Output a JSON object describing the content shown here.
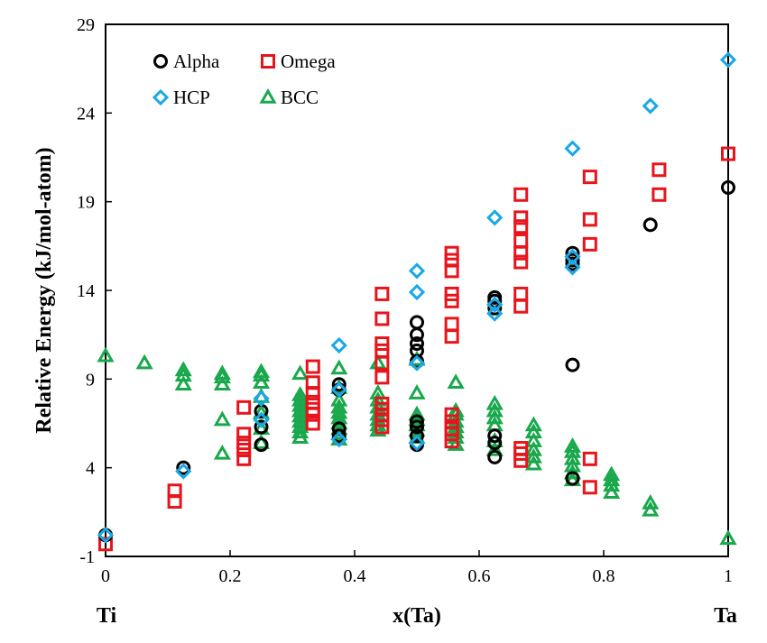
{
  "chart_data": {
    "type": "scatter",
    "title": "",
    "xlabel": "x(Ta)",
    "ylabel": "Relative Energy (kJ/mol-atom)",
    "x_end_labels": {
      "left": "Ti",
      "right": "Ta"
    },
    "xlim": [
      0,
      1
    ],
    "ylim": [
      -1,
      29
    ],
    "xticks": [
      0,
      0.2,
      0.4,
      0.6,
      0.8,
      1
    ],
    "xtick_labels": [
      "0",
      "0.2",
      "0.4",
      "0.6",
      "0.8",
      "1"
    ],
    "yticks": [
      -1,
      4,
      9,
      14,
      19,
      24,
      29
    ],
    "ytick_labels": [
      "-1",
      "4",
      "9",
      "14",
      "19",
      "24",
      "29"
    ],
    "grid": false,
    "legend_position": "top-left",
    "series": [
      {
        "name": "Alpha",
        "marker": "circle",
        "color": "#000000",
        "points": [
          [
            0.0,
            0.2
          ],
          [
            0.125,
            4.0
          ],
          [
            0.25,
            5.3
          ],
          [
            0.25,
            6.3
          ],
          [
            0.25,
            7.2
          ],
          [
            0.375,
            5.8
          ],
          [
            0.375,
            6.2
          ],
          [
            0.375,
            8.4
          ],
          [
            0.375,
            8.7
          ],
          [
            0.5,
            5.3
          ],
          [
            0.5,
            5.8
          ],
          [
            0.5,
            6.3
          ],
          [
            0.5,
            6.6
          ],
          [
            0.5,
            10.0
          ],
          [
            0.5,
            10.6
          ],
          [
            0.5,
            11.0
          ],
          [
            0.5,
            11.5
          ],
          [
            0.5,
            12.2
          ],
          [
            0.625,
            4.6
          ],
          [
            0.625,
            5.4
          ],
          [
            0.625,
            5.8
          ],
          [
            0.625,
            13.0
          ],
          [
            0.625,
            13.4
          ],
          [
            0.625,
            13.6
          ],
          [
            0.75,
            3.4
          ],
          [
            0.75,
            9.8
          ],
          [
            0.75,
            15.5
          ],
          [
            0.75,
            15.7
          ],
          [
            0.75,
            16.1
          ],
          [
            0.875,
            17.7
          ],
          [
            1.0,
            19.8
          ]
        ]
      },
      {
        "name": "Omega",
        "marker": "square",
        "color": "#e8141c",
        "points": [
          [
            0.0,
            -0.3
          ],
          [
            0.111,
            2.1
          ],
          [
            0.111,
            2.7
          ],
          [
            0.222,
            4.5
          ],
          [
            0.222,
            5.0
          ],
          [
            0.222,
            5.4
          ],
          [
            0.222,
            5.9
          ],
          [
            0.222,
            7.4
          ],
          [
            0.333,
            6.5
          ],
          [
            0.333,
            7.0
          ],
          [
            0.333,
            7.3
          ],
          [
            0.333,
            7.7
          ],
          [
            0.333,
            8.2
          ],
          [
            0.333,
            8.8
          ],
          [
            0.333,
            9.7
          ],
          [
            0.444,
            6.3
          ],
          [
            0.444,
            6.7
          ],
          [
            0.444,
            7.0
          ],
          [
            0.444,
            7.3
          ],
          [
            0.444,
            7.6
          ],
          [
            0.444,
            9.1
          ],
          [
            0.444,
            9.9
          ],
          [
            0.444,
            10.6
          ],
          [
            0.444,
            11.0
          ],
          [
            0.444,
            12.4
          ],
          [
            0.444,
            13.8
          ],
          [
            0.556,
            5.5
          ],
          [
            0.556,
            5.9
          ],
          [
            0.556,
            6.2
          ],
          [
            0.556,
            6.6
          ],
          [
            0.556,
            7.0
          ],
          [
            0.556,
            11.4
          ],
          [
            0.556,
            12.1
          ],
          [
            0.556,
            13.4
          ],
          [
            0.556,
            13.8
          ],
          [
            0.556,
            15.1
          ],
          [
            0.556,
            15.7
          ],
          [
            0.556,
            16.1
          ],
          [
            0.667,
            4.4
          ],
          [
            0.667,
            4.8
          ],
          [
            0.667,
            5.1
          ],
          [
            0.667,
            13.1
          ],
          [
            0.667,
            13.8
          ],
          [
            0.667,
            15.6
          ],
          [
            0.667,
            16.1
          ],
          [
            0.667,
            16.8
          ],
          [
            0.667,
            17.6
          ],
          [
            0.667,
            18.1
          ],
          [
            0.667,
            19.4
          ],
          [
            0.778,
            2.9
          ],
          [
            0.778,
            4.5
          ],
          [
            0.778,
            16.6
          ],
          [
            0.778,
            18.0
          ],
          [
            0.778,
            20.4
          ],
          [
            0.889,
            19.4
          ],
          [
            0.889,
            20.8
          ],
          [
            1.0,
            21.7
          ]
        ]
      },
      {
        "name": "HCP",
        "marker": "diamond",
        "color": "#1aa8e6",
        "points": [
          [
            0.0,
            0.2
          ],
          [
            0.125,
            3.8
          ],
          [
            0.25,
            6.7
          ],
          [
            0.25,
            7.9
          ],
          [
            0.375,
            5.6
          ],
          [
            0.375,
            8.4
          ],
          [
            0.375,
            10.9
          ],
          [
            0.5,
            5.4
          ],
          [
            0.5,
            9.9
          ],
          [
            0.5,
            13.9
          ],
          [
            0.5,
            15.1
          ],
          [
            0.625,
            12.7
          ],
          [
            0.625,
            13.2
          ],
          [
            0.625,
            18.1
          ],
          [
            0.75,
            15.3
          ],
          [
            0.75,
            15.9
          ],
          [
            0.75,
            22.0
          ],
          [
            0.875,
            24.4
          ],
          [
            1.0,
            27.0
          ]
        ]
      },
      {
        "name": "BCC",
        "marker": "triangle",
        "color": "#1aa84c",
        "points": [
          [
            0.0,
            10.3
          ],
          [
            0.0625,
            9.9
          ],
          [
            0.125,
            8.7
          ],
          [
            0.125,
            9.2
          ],
          [
            0.125,
            9.5
          ],
          [
            0.1875,
            4.8
          ],
          [
            0.1875,
            6.7
          ],
          [
            0.1875,
            8.7
          ],
          [
            0.1875,
            9.1
          ],
          [
            0.1875,
            9.3
          ],
          [
            0.25,
            5.4
          ],
          [
            0.25,
            6.2
          ],
          [
            0.25,
            7.1
          ],
          [
            0.25,
            8.0
          ],
          [
            0.25,
            8.8
          ],
          [
            0.25,
            9.2
          ],
          [
            0.25,
            9.4
          ],
          [
            0.3125,
            5.7
          ],
          [
            0.3125,
            6.0
          ],
          [
            0.3125,
            6.3
          ],
          [
            0.3125,
            6.6
          ],
          [
            0.3125,
            6.9
          ],
          [
            0.3125,
            7.2
          ],
          [
            0.3125,
            7.5
          ],
          [
            0.3125,
            7.8
          ],
          [
            0.3125,
            8.1
          ],
          [
            0.3125,
            9.3
          ],
          [
            0.375,
            5.6
          ],
          [
            0.375,
            5.9
          ],
          [
            0.375,
            6.2
          ],
          [
            0.375,
            6.5
          ],
          [
            0.375,
            6.8
          ],
          [
            0.375,
            7.1
          ],
          [
            0.375,
            7.4
          ],
          [
            0.375,
            7.8
          ],
          [
            0.375,
            8.5
          ],
          [
            0.375,
            9.6
          ],
          [
            0.4375,
            6.1
          ],
          [
            0.4375,
            6.4
          ],
          [
            0.4375,
            6.7
          ],
          [
            0.4375,
            7.0
          ],
          [
            0.4375,
            7.4
          ],
          [
            0.4375,
            7.8
          ],
          [
            0.4375,
            8.2
          ],
          [
            0.4375,
            9.9
          ],
          [
            0.5,
            5.7
          ],
          [
            0.5,
            6.1
          ],
          [
            0.5,
            6.4
          ],
          [
            0.5,
            6.7
          ],
          [
            0.5,
            7.0
          ],
          [
            0.5,
            8.2
          ],
          [
            0.5,
            10.1
          ],
          [
            0.5625,
            5.3
          ],
          [
            0.5625,
            5.7
          ],
          [
            0.5625,
            6.0
          ],
          [
            0.5625,
            6.3
          ],
          [
            0.5625,
            6.6
          ],
          [
            0.5625,
            7.0
          ],
          [
            0.5625,
            7.2
          ],
          [
            0.5625,
            8.8
          ],
          [
            0.625,
            5.0
          ],
          [
            0.625,
            5.5
          ],
          [
            0.625,
            6.4
          ],
          [
            0.625,
            6.8
          ],
          [
            0.625,
            7.2
          ],
          [
            0.625,
            7.6
          ],
          [
            0.6875,
            4.2
          ],
          [
            0.6875,
            4.6
          ],
          [
            0.6875,
            5.0
          ],
          [
            0.6875,
            5.5
          ],
          [
            0.6875,
            6.0
          ],
          [
            0.6875,
            6.4
          ],
          [
            0.75,
            3.3
          ],
          [
            0.75,
            3.7
          ],
          [
            0.75,
            4.1
          ],
          [
            0.75,
            4.5
          ],
          [
            0.75,
            4.9
          ],
          [
            0.75,
            5.2
          ],
          [
            0.8125,
            2.6
          ],
          [
            0.8125,
            3.0
          ],
          [
            0.8125,
            3.3
          ],
          [
            0.8125,
            3.6
          ],
          [
            0.875,
            1.6
          ],
          [
            0.875,
            2.0
          ],
          [
            1.0,
            0.0
          ]
        ]
      }
    ]
  }
}
